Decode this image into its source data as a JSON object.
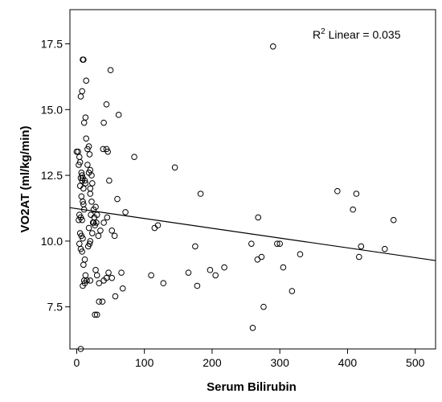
{
  "chart_data": {
    "type": "scatter",
    "title": "",
    "xlabel": "Serum Bilirubin",
    "ylabel": "VO2AT (ml/kg/min)",
    "xlim": [
      -10,
      530
    ],
    "ylim": [
      5.9,
      18.8
    ],
    "xticks": [
      0,
      100,
      200,
      300,
      400,
      500
    ],
    "yticks": [
      7.5,
      10.0,
      12.5,
      15.0,
      17.5
    ],
    "ytick_labels": [
      "7.5",
      "10.0",
      "12.5",
      "15.0",
      "17.5"
    ],
    "grid": false,
    "annotation": {
      "prefix": "R",
      "superscript": "2",
      "text": " Linear = 0.035"
    },
    "fit_line": {
      "x": [
        -10,
        530
      ],
      "y": [
        11.27,
        9.26
      ]
    },
    "points": [
      [
        0,
        13.4
      ],
      [
        2,
        13.4
      ],
      [
        4,
        13.2
      ],
      [
        5,
        13.0
      ],
      [
        3,
        12.9
      ],
      [
        7,
        12.6
      ],
      [
        8,
        12.5
      ],
      [
        9,
        12.4
      ],
      [
        6,
        12.4
      ],
      [
        8,
        12.3
      ],
      [
        5,
        12.1
      ],
      [
        10,
        12.0
      ],
      [
        7,
        11.7
      ],
      [
        9,
        11.5
      ],
      [
        10,
        11.4
      ],
      [
        11,
        11.2
      ],
      [
        4,
        11.0
      ],
      [
        6,
        10.9
      ],
      [
        8,
        10.8
      ],
      [
        3,
        10.8
      ],
      [
        5,
        10.3
      ],
      [
        7,
        10.2
      ],
      [
        9,
        10.1
      ],
      [
        4,
        9.9
      ],
      [
        6,
        9.7
      ],
      [
        8,
        9.6
      ],
      [
        10,
        9.1
      ],
      [
        12,
        9.3
      ],
      [
        13,
        8.7
      ],
      [
        15,
        8.5
      ],
      [
        9,
        8.3
      ],
      [
        11,
        8.5
      ],
      [
        12,
        8.4
      ],
      [
        6,
        5.9
      ],
      [
        8,
        15.7
      ],
      [
        6,
        15.5
      ],
      [
        9,
        16.9
      ],
      [
        10,
        16.9
      ],
      [
        14,
        16.1
      ],
      [
        13,
        14.7
      ],
      [
        11,
        14.5
      ],
      [
        14,
        13.9
      ],
      [
        16,
        13.5
      ],
      [
        18,
        13.6
      ],
      [
        19,
        13.3
      ],
      [
        16,
        12.9
      ],
      [
        18,
        12.6
      ],
      [
        20,
        12.7
      ],
      [
        22,
        12.5
      ],
      [
        12,
        12.3
      ],
      [
        13,
        12.2
      ],
      [
        20,
        12.0
      ],
      [
        23,
        12.2
      ],
      [
        20,
        11.8
      ],
      [
        22,
        11.5
      ],
      [
        25,
        11.2
      ],
      [
        28,
        11.3
      ],
      [
        21,
        11.0
      ],
      [
        26,
        10.9
      ],
      [
        18,
        10.5
      ],
      [
        24,
        10.7
      ],
      [
        27,
        10.6
      ],
      [
        29,
        10.7
      ],
      [
        23,
        10.3
      ],
      [
        20,
        10.0
      ],
      [
        17,
        9.8
      ],
      [
        19,
        9.9
      ],
      [
        30,
        11.0
      ],
      [
        32,
        10.2
      ],
      [
        35,
        10.4
      ],
      [
        25,
        10.7
      ],
      [
        28,
        8.9
      ],
      [
        30,
        8.7
      ],
      [
        33,
        8.4
      ],
      [
        20,
        8.5
      ],
      [
        27,
        7.2
      ],
      [
        30,
        7.2
      ],
      [
        33,
        7.7
      ],
      [
        38,
        7.7
      ],
      [
        40,
        8.5
      ],
      [
        44,
        8.6
      ],
      [
        47,
        8.8
      ],
      [
        52,
        8.6
      ],
      [
        57,
        7.9
      ],
      [
        68,
        8.2
      ],
      [
        66,
        8.8
      ],
      [
        40,
        10.7
      ],
      [
        45,
        10.9
      ],
      [
        52,
        10.4
      ],
      [
        56,
        10.2
      ],
      [
        39,
        13.5
      ],
      [
        44,
        13.5
      ],
      [
        46,
        13.4
      ],
      [
        48,
        12.3
      ],
      [
        60,
        11.6
      ],
      [
        72,
        11.1
      ],
      [
        40,
        14.5
      ],
      [
        44,
        15.2
      ],
      [
        50,
        16.5
      ],
      [
        62,
        14.8
      ],
      [
        85,
        13.2
      ],
      [
        110,
        8.7
      ],
      [
        115,
        10.5
      ],
      [
        120,
        10.6
      ],
      [
        128,
        8.4
      ],
      [
        145,
        12.8
      ],
      [
        165,
        8.8
      ],
      [
        175,
        9.8
      ],
      [
        178,
        8.3
      ],
      [
        183,
        11.8
      ],
      [
        197,
        8.9
      ],
      [
        205,
        8.7
      ],
      [
        218,
        9.0
      ],
      [
        258,
        9.9
      ],
      [
        260,
        6.7
      ],
      [
        267,
        9.3
      ],
      [
        268,
        10.9
      ],
      [
        273,
        9.4
      ],
      [
        276,
        7.5
      ],
      [
        290,
        17.4
      ],
      [
        296,
        9.9
      ],
      [
        300,
        9.9
      ],
      [
        305,
        9.0
      ],
      [
        318,
        8.1
      ],
      [
        330,
        9.5
      ],
      [
        385,
        11.9
      ],
      [
        408,
        11.2
      ],
      [
        413,
        11.8
      ],
      [
        417,
        9.4
      ],
      [
        420,
        9.8
      ],
      [
        455,
        9.7
      ],
      [
        468,
        10.8
      ]
    ]
  }
}
